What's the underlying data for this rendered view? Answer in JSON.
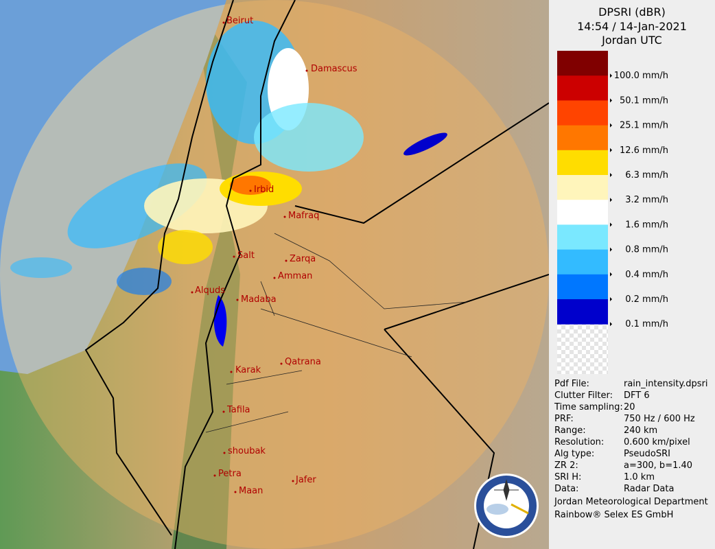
{
  "header": {
    "title": "DPSRI (dBR)",
    "time": "14:54 / 14-Jan-2021",
    "zone": "Jordan UTC"
  },
  "legend": {
    "colors": [
      "#800000",
      "#cc0000",
      "#ff4400",
      "#ff7700",
      "#ffdd00",
      "#fff5bb",
      "#ffffff",
      "#7ae8ff",
      "#33bbff",
      "#0077ff",
      "#0000cc"
    ],
    "labels": [
      "100.0 mm/h",
      "50.1 mm/h",
      "25.1 mm/h",
      "12.6 mm/h",
      "6.3 mm/h",
      "3.2 mm/h",
      "1.6 mm/h",
      "0.8 mm/h",
      "0.4 mm/h",
      "0.2 mm/h",
      "0.1 mm/h"
    ]
  },
  "info": [
    [
      "Pdf File:",
      "rain_intensity.dpsri"
    ],
    [
      "Clutter Filter:",
      "DFT 6"
    ],
    [
      "Time sampling:",
      "20"
    ],
    [
      "PRF:",
      "750 Hz / 600 Hz"
    ],
    [
      "Range:",
      "240 km"
    ],
    [
      "Resolution:",
      "0.600 km/pixel"
    ],
    [
      "Alg type:",
      "PseudoSRI"
    ],
    [
      "ZR 2:",
      "a=300, b=1.40"
    ],
    [
      "SRI H:",
      "1.0 km"
    ],
    [
      "Data:",
      "Radar Data"
    ]
  ],
  "footer": [
    "Jordan Meteorological Department",
    "Rainbow® Selex ES GmbH"
  ],
  "cities": [
    "Beirut",
    "Damascus",
    "Irbid",
    "Mafraq",
    "Salt",
    "Zarqa",
    "Amman",
    "Alquds",
    "Madaba",
    "Qatrana",
    "Karak",
    "Tafila",
    "shoubak",
    "Petra",
    "Maan",
    "Jafer"
  ]
}
